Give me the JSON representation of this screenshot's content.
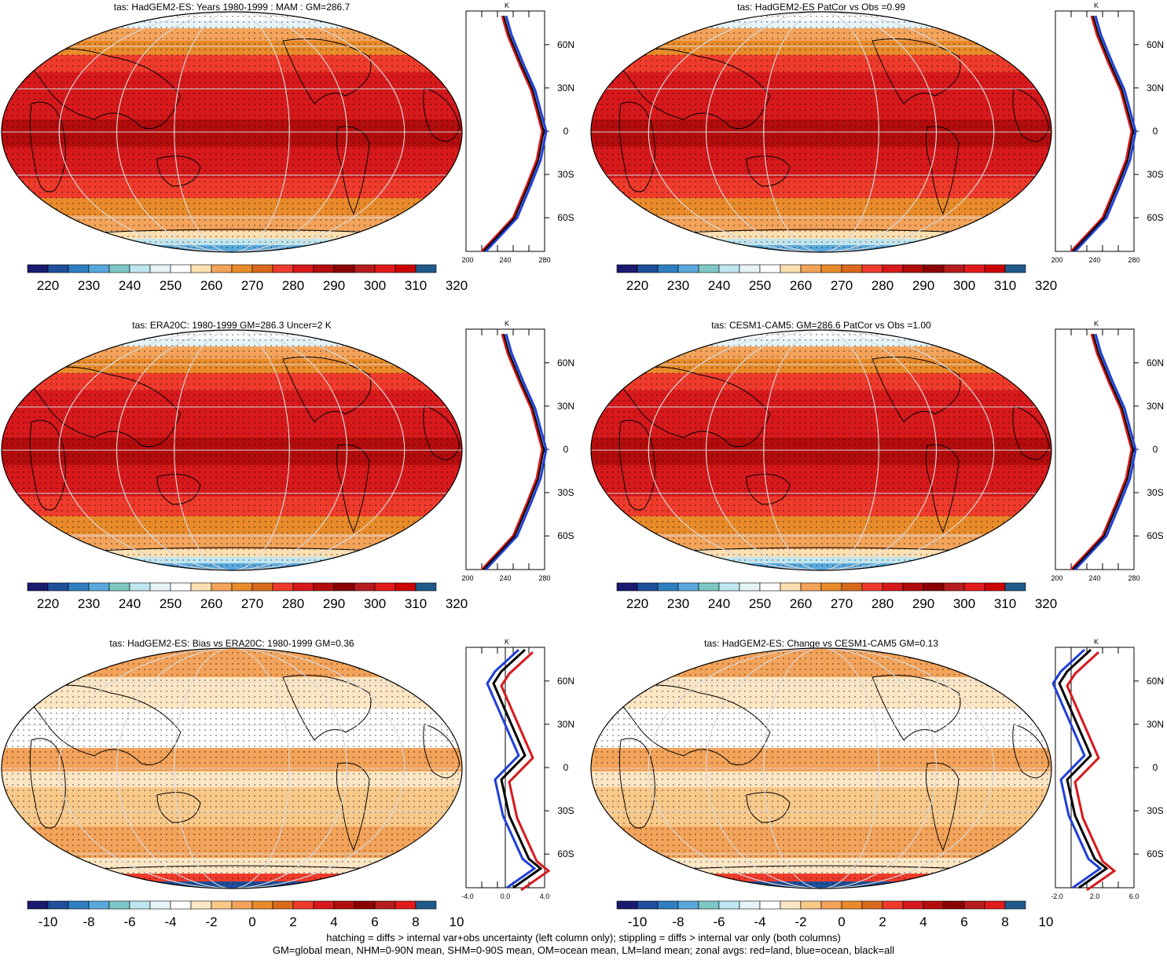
{
  "panels": [
    {
      "title": "tas: HadGEM2-ES: Years 1980-1999 : MAM : GM=286.7",
      "kind": "abs",
      "colorbar_labels": [
        "220",
        "230",
        "240",
        "250",
        "260",
        "270",
        "280",
        "290",
        "300",
        "310",
        "320"
      ],
      "zonal": {
        "x_ticks": [
          "200",
          "240",
          "280"
        ],
        "unit": "K"
      }
    },
    {
      "title": "tas: HadGEM2-ES PatCor vs Obs =0.99",
      "kind": "abs",
      "colorbar_labels": [
        "220",
        "230",
        "240",
        "250",
        "260",
        "270",
        "280",
        "290",
        "300",
        "310",
        "320"
      ],
      "zonal": {
        "x_ticks": [
          "200",
          "240",
          "280"
        ],
        "unit": "K"
      }
    },
    {
      "title": "tas: ERA20C: 1980-1999 GM=286.3 Uncer=2 K",
      "kind": "abs",
      "colorbar_labels": [
        "220",
        "230",
        "240",
        "250",
        "260",
        "270",
        "280",
        "290",
        "300",
        "310",
        "320"
      ],
      "zonal": {
        "x_ticks": [
          "200",
          "240",
          "280"
        ],
        "unit": "K"
      }
    },
    {
      "title": "tas: CESM1-CAM5: GM=286.6 PatCor vs Obs =1.00",
      "kind": "abs",
      "colorbar_labels": [
        "220",
        "230",
        "240",
        "250",
        "260",
        "270",
        "280",
        "290",
        "300",
        "310",
        "320"
      ],
      "zonal": {
        "x_ticks": [
          "200",
          "240",
          "280"
        ],
        "unit": "K"
      }
    },
    {
      "title": "tas: HadGEM2-ES: Bias vs ERA20C: 1980-1999 GM=0.36",
      "kind": "diff",
      "colorbar_labels": [
        "-10",
        "-8",
        "-6",
        "-4",
        "-2",
        "0",
        "2",
        "4",
        "6",
        "8",
        "10"
      ],
      "zonal": {
        "x_ticks": [
          "-4.0",
          "0.0",
          "4.0"
        ],
        "unit": "K"
      }
    },
    {
      "title": "tas: HadGEM2-ES: Change vs CESM1-CAM5 GM=0.13",
      "kind": "diff",
      "colorbar_labels": [
        "-10",
        "-8",
        "-6",
        "-4",
        "-2",
        "0",
        "2",
        "4",
        "6",
        "8",
        "10"
      ],
      "zonal": {
        "x_ticks": [
          "-2.0",
          "2.0",
          "6.0"
        ],
        "unit": "K"
      }
    }
  ],
  "lat_labels": [
    "60N",
    "30N",
    "0",
    "30S",
    "60S"
  ],
  "colors": {
    "abs_palette": [
      "#1a1a6e",
      "#1f4f9a",
      "#2f7fc1",
      "#5aa9dd",
      "#7ec7c4",
      "#bfe6ef",
      "#e6f4f8",
      "#ffffff",
      "#fde0b2",
      "#f3a35a",
      "#e98b2a",
      "#d96a1c",
      "#ef3b2c",
      "#d7191c",
      "#b30c0c",
      "#8b0000",
      "#b71c1c",
      "#e31a1c",
      "#cc0000",
      "#205a8a"
    ],
    "diff_palette": [
      "#1a1a6e",
      "#1f4f9a",
      "#2f7fc1",
      "#5aa9dd",
      "#7ec7c4",
      "#bfe6ef",
      "#e6f4f8",
      "#ffffff",
      "#fde6c4",
      "#f9c98a",
      "#f3a35a",
      "#e98b2a",
      "#d96a1c",
      "#ef3b2c",
      "#d7191c",
      "#b30c0c",
      "#8b0000",
      "#b71c1c",
      "#e31a1c",
      "#205a8a"
    ],
    "land": "#d7191c",
    "ocean": "#1f3fd6",
    "all": "#000000"
  },
  "footer": {
    "line1": "hatching = diffs > internal var+obs uncertainty (left column only); stippling = diffs > internal var only (both columns)",
    "line2": "GM=global mean, NHM=0-90N mean, SHM=0-90S mean, OM=ocean mean, LM=land mean; zonal avgs: red=land, blue=ocean, black=all"
  }
}
